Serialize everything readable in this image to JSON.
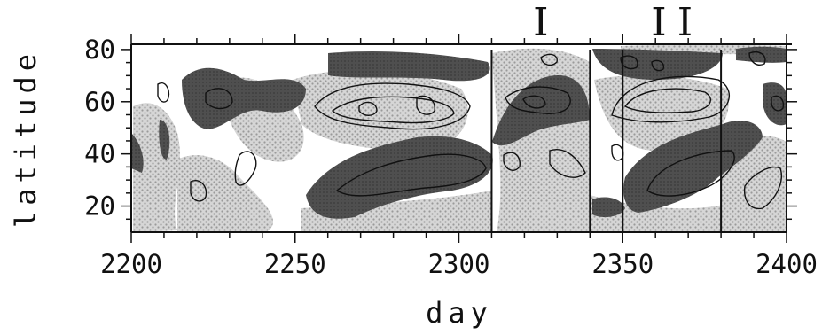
{
  "chart_data": {
    "type": "heatmap",
    "title": "",
    "xlabel": "day",
    "ylabel": "latitude",
    "xlim": [
      2200,
      2400
    ],
    "ylim": [
      10,
      82
    ],
    "x_ticks": [
      2200,
      2250,
      2300,
      2350,
      2400
    ],
    "x_tick_labels": [
      "2200",
      "2250",
      "2300",
      "2350",
      "2400"
    ],
    "y_ticks": [
      20,
      40,
      60,
      80
    ],
    "y_tick_labels": [
      "20",
      "40",
      "60",
      "80"
    ],
    "grid": false,
    "legend": "none",
    "vertical_lines_day": [
      2310,
      2340,
      2350,
      2380
    ],
    "markers": [
      {
        "label": "I",
        "day": 2325
      },
      {
        "label": "I",
        "day": 2361
      },
      {
        "label": "I",
        "day": 2369
      }
    ],
    "colors": {
      "strong_band": "#4a4a4a",
      "weak_band": "#c9c9c9",
      "contour": "#111111",
      "axis": "#111111"
    }
  }
}
